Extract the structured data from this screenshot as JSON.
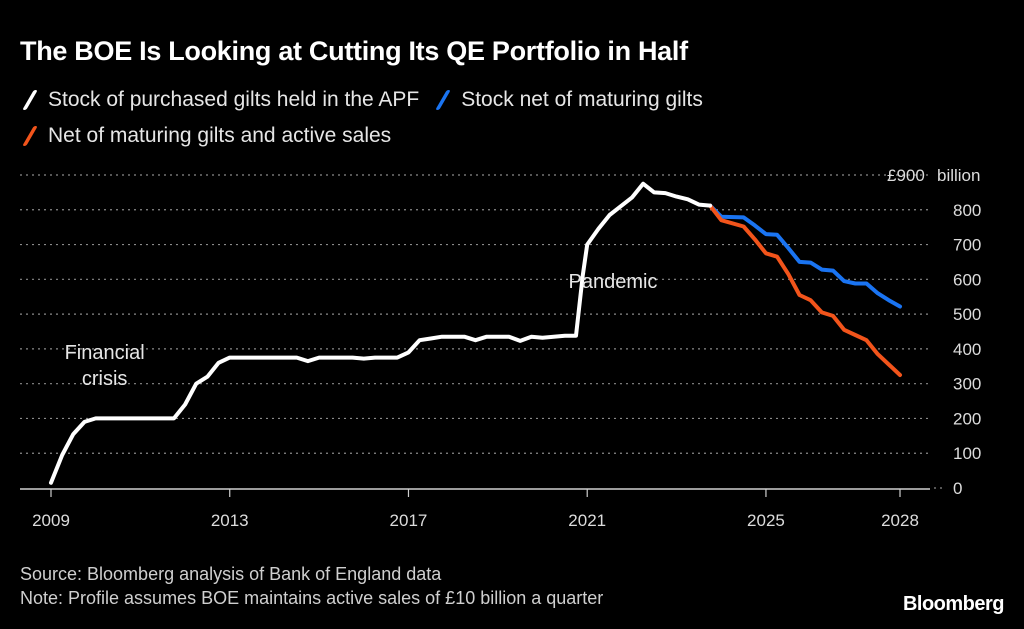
{
  "chart_data": {
    "type": "line",
    "title": "The BOE Is Looking at Cutting Its QE Portfolio in Half",
    "xlabel": "",
    "ylabel": "£ billion",
    "y_unit_label": "£900 billion",
    "xlim": [
      2009,
      2028
    ],
    "ylim": [
      0,
      900
    ],
    "x_ticks": [
      2009,
      2013,
      2017,
      2021,
      2025,
      2028
    ],
    "x_tick_labels": [
      "2009",
      "2013",
      "2017",
      "2021",
      "2025",
      "2028"
    ],
    "y_ticks": [
      0,
      100,
      200,
      300,
      400,
      500,
      600,
      700,
      800,
      900
    ],
    "y_tick_labels": [
      "0",
      "100",
      "200",
      "300",
      "400",
      "500",
      "600",
      "700",
      "800",
      "£900"
    ],
    "grid": true,
    "legend_position": "top-left",
    "series": [
      {
        "name": "Stock of purchased gilts held in the APF",
        "color": "#ffffff",
        "x": [
          2009.0,
          2009.25,
          2009.5,
          2009.75,
          2010.0,
          2011.75,
          2012.0,
          2012.25,
          2012.5,
          2012.75,
          2013.0,
          2014.5,
          2014.75,
          2015.0,
          2015.75,
          2016.0,
          2016.25,
          2016.75,
          2017.0,
          2017.25,
          2017.5,
          2017.75,
          2018.25,
          2018.5,
          2018.75,
          2019.25,
          2019.5,
          2019.75,
          2020.0,
          2020.5,
          2020.75,
          2020.9,
          2021.0,
          2021.25,
          2021.5,
          2021.75,
          2022.0,
          2022.25,
          2022.5,
          2022.75,
          2023.0,
          2023.25,
          2023.5,
          2023.75
        ],
        "values": [
          15,
          95,
          155,
          190,
          200,
          200,
          240,
          300,
          320,
          360,
          375,
          375,
          365,
          375,
          375,
          372,
          375,
          375,
          390,
          425,
          430,
          435,
          435,
          425,
          435,
          435,
          423,
          435,
          432,
          438,
          438,
          610,
          700,
          745,
          785,
          810,
          835,
          875,
          850,
          848,
          838,
          830,
          815,
          812
        ]
      },
      {
        "name": "Stock net of maturing gilts",
        "color": "#1a74f2",
        "x": [
          2023.75,
          2024.0,
          2024.5,
          2024.75,
          2025.0,
          2025.25,
          2025.5,
          2025.75,
          2026.0,
          2026.25,
          2026.5,
          2026.75,
          2027.0,
          2027.25,
          2027.5,
          2027.75,
          2028.0
        ],
        "values": [
          812,
          780,
          778,
          755,
          730,
          728,
          690,
          650,
          648,
          628,
          625,
          595,
          588,
          588,
          560,
          540,
          522
        ]
      },
      {
        "name": "Net of maturing gilts and active sales",
        "color": "#f2541b",
        "x": [
          2023.75,
          2024.0,
          2024.5,
          2024.75,
          2025.0,
          2025.25,
          2025.5,
          2025.75,
          2026.0,
          2026.25,
          2026.5,
          2026.75,
          2027.0,
          2027.25,
          2027.5,
          2027.75,
          2028.0
        ],
        "values": [
          812,
          770,
          752,
          715,
          675,
          665,
          615,
          555,
          540,
          505,
          495,
          455,
          440,
          425,
          385,
          355,
          325
        ]
      }
    ],
    "annotations": [
      {
        "text_lines": [
          "Financial",
          "crisis"
        ],
        "x": 2010.2,
        "y": 385
      },
      {
        "text": "Pandemic",
        "x": 2021.8,
        "y": 575
      }
    ]
  },
  "title": "The BOE Is Looking at Cutting Its QE Portfolio in Half",
  "legend": [
    {
      "label": "Stock of purchased gilts held in the APF",
      "color": "#ffffff"
    },
    {
      "label": "Stock net of maturing gilts",
      "color": "#1a74f2"
    },
    {
      "label": "Net of maturing gilts and active sales",
      "color": "#f2541b"
    }
  ],
  "footer": {
    "source": "Source: Bloomberg analysis of Bank of England data",
    "note": "Note: Profile assumes BOE maintains active sales of £10 billion a quarter"
  },
  "y_unit_suffix": "billion",
  "logo": "Bloomberg"
}
